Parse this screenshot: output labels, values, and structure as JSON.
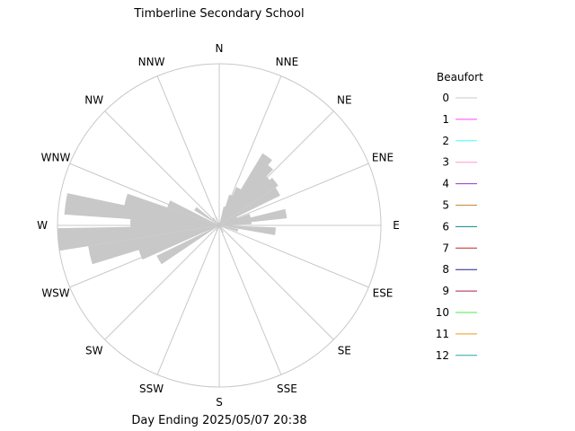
{
  "title": "Timberline Secondary School",
  "footer": "Day Ending 2025/05/07 20:38",
  "legend": {
    "title": "Beaufort",
    "items": [
      {
        "label": "0",
        "color": "#c8c8c8"
      },
      {
        "label": "1",
        "color": "#ff44ff"
      },
      {
        "label": "2",
        "color": "#44ffff"
      },
      {
        "label": "3",
        "color": "#ff99cc"
      },
      {
        "label": "4",
        "color": "#9933cc"
      },
      {
        "label": "5",
        "color": "#cc8833"
      },
      {
        "label": "6",
        "color": "#008899"
      },
      {
        "label": "7",
        "color": "#cc2222"
      },
      {
        "label": "8",
        "color": "#222288"
      },
      {
        "label": "9",
        "color": "#aa2244"
      },
      {
        "label": "10",
        "color": "#44ee44"
      },
      {
        "label": "11",
        "color": "#ee9922"
      },
      {
        "label": "12",
        "color": "#22aaaa"
      }
    ]
  },
  "directions": [
    "N",
    "NNE",
    "NE",
    "ENE",
    "E",
    "ESE",
    "SE",
    "SSE",
    "S",
    "SSW",
    "SW",
    "WSW",
    "W",
    "WNW",
    "NW",
    "NNW"
  ],
  "colors": {
    "grid": "#c8c8c8",
    "petal": "#c8c8c8"
  },
  "chart_data": {
    "type": "wind-rose",
    "title": "Timberline Secondary School",
    "footer": "Day Ending 2025/05/07 20:38",
    "legend_title": "Beaufort",
    "legend_placement": "right",
    "radial_max": 1.0,
    "petal_width_deg": 8,
    "series": [
      {
        "name": "0",
        "bins": [
          {
            "direction_deg": 17,
            "frequency": 0.12
          },
          {
            "direction_deg": 22,
            "frequency": 0.2
          },
          {
            "direction_deg": 28,
            "frequency": 0.26
          },
          {
            "direction_deg": 35,
            "frequency": 0.52
          },
          {
            "direction_deg": 40,
            "frequency": 0.48
          },
          {
            "direction_deg": 45,
            "frequency": 0.42
          },
          {
            "direction_deg": 52,
            "frequency": 0.44
          },
          {
            "direction_deg": 60,
            "frequency": 0.42
          },
          {
            "direction_deg": 67,
            "frequency": 0.12
          },
          {
            "direction_deg": 73,
            "frequency": 0.2
          },
          {
            "direction_deg": 80,
            "frequency": 0.42
          },
          {
            "direction_deg": 84,
            "frequency": 0.2
          },
          {
            "direction_deg": 90,
            "frequency": 0.07
          },
          {
            "direction_deg": 96,
            "frequency": 0.35
          },
          {
            "direction_deg": 105,
            "frequency": 0.12
          },
          {
            "direction_deg": 150,
            "frequency": 0.05
          },
          {
            "direction_deg": 210,
            "frequency": 0.04
          },
          {
            "direction_deg": 240,
            "frequency": 0.43
          },
          {
            "direction_deg": 250,
            "frequency": 0.52
          },
          {
            "direction_deg": 257,
            "frequency": 0.82
          },
          {
            "direction_deg": 265,
            "frequency": 1.0
          },
          {
            "direction_deg": 272,
            "frequency": 0.55
          },
          {
            "direction_deg": 278,
            "frequency": 0.96
          },
          {
            "direction_deg": 285,
            "frequency": 0.6
          },
          {
            "direction_deg": 293,
            "frequency": 0.34
          },
          {
            "direction_deg": 305,
            "frequency": 0.18
          },
          {
            "direction_deg": 320,
            "frequency": 0.06
          },
          {
            "direction_deg": 340,
            "frequency": 0.05
          }
        ]
      }
    ]
  }
}
